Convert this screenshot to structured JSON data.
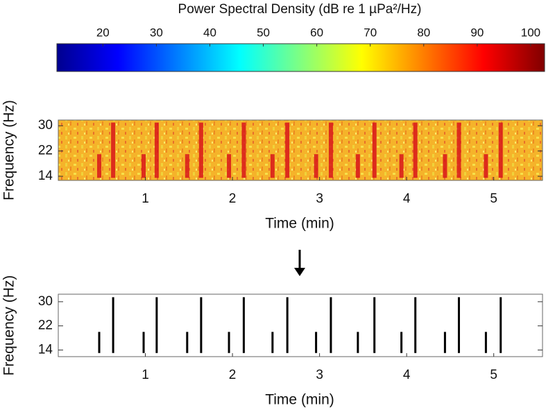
{
  "chart_data": [
    {
      "type": "colorbar",
      "title": "Power Spectral Density (dB re 1 µPa²/Hz)",
      "xlim": [
        11.4,
        102.6
      ],
      "xticks": [
        20,
        30,
        40,
        50,
        60,
        70,
        80,
        90,
        100
      ],
      "colors": [
        "#00008f",
        "#0000ff",
        "#0080ff",
        "#00ffff",
        "#80ff80",
        "#ffff00",
        "#ff8000",
        "#ff0000",
        "#800000"
      ]
    },
    {
      "type": "spectrogram",
      "xlabel": "Time (min)",
      "ylabel": "Frequency (Hz)",
      "xlim": [
        0,
        5.56
      ],
      "xticks": [
        1,
        2,
        3,
        4,
        5
      ],
      "ylim": [
        12.7,
        31.8
      ],
      "yticks": [
        14,
        22,
        30
      ],
      "color": "#d8141a",
      "events": {
        "time": [
          0.47,
          0.63,
          0.98,
          1.13,
          1.48,
          1.64,
          1.96,
          2.13,
          2.46,
          2.63,
          2.96,
          3.13,
          3.44,
          3.63,
          3.94,
          4.1,
          4.44,
          4.6,
          4.91,
          5.08
        ],
        "fmin": [
          13.5,
          13.5,
          13.5,
          13.5,
          13.5,
          13.5,
          13.5,
          13.5,
          13.5,
          13.5,
          13.5,
          13.5,
          13.5,
          13.5,
          13.5,
          13.5,
          13.5,
          13.5,
          13.5,
          13.5
        ],
        "fmax": [
          21,
          31,
          21,
          31,
          21,
          31,
          21,
          31,
          21,
          31,
          21,
          31,
          21,
          31,
          21,
          31,
          21,
          31,
          21,
          31
        ]
      }
    },
    {
      "type": "detection",
      "xlabel": "Time (min)",
      "ylabel": "Frequency (Hz)",
      "xlim": [
        0,
        5.56
      ],
      "xticks": [
        1,
        2,
        3,
        4,
        5
      ],
      "ylim": [
        11.8,
        32.5
      ],
      "yticks": [
        14,
        22,
        30
      ],
      "color": "#000000",
      "events": {
        "time": [
          0.47,
          0.63,
          0.98,
          1.13,
          1.48,
          1.64,
          1.96,
          2.13,
          2.46,
          2.63,
          2.96,
          3.13,
          3.44,
          3.63,
          3.94,
          4.1,
          4.44,
          4.6,
          4.91,
          5.08
        ],
        "fmin": [
          13,
          13,
          13,
          13,
          13,
          13,
          13,
          13,
          13,
          13,
          13,
          13,
          13,
          13,
          13,
          13,
          13,
          13,
          13,
          13
        ],
        "fmax": [
          20,
          31.5,
          20,
          31.5,
          20,
          31.5,
          20,
          31.5,
          20,
          31.5,
          20,
          31.5,
          20,
          31.5,
          20,
          31.5,
          20,
          31.5,
          20,
          31.5
        ]
      }
    }
  ]
}
